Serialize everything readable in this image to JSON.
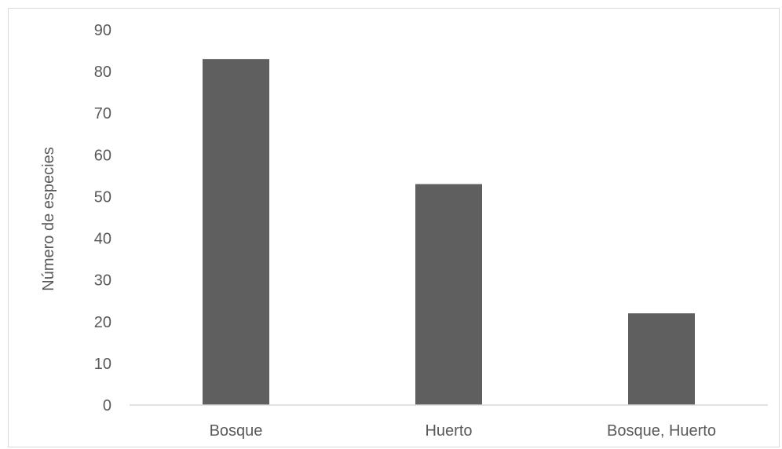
{
  "chart_data": {
    "type": "bar",
    "categories": [
      "Bosque",
      "Huerto",
      "Bosque, Huerto"
    ],
    "values": [
      83,
      53,
      22
    ],
    "ylabel": "Número de especies",
    "xlabel": "",
    "ylim": [
      0,
      90
    ],
    "y_ticks": [
      0,
      10,
      20,
      30,
      40,
      50,
      60,
      70,
      80,
      90
    ],
    "grid": false,
    "bar_color": "#5f5f5f",
    "axis_color": "#d9d9d9",
    "text_color": "#595959"
  }
}
